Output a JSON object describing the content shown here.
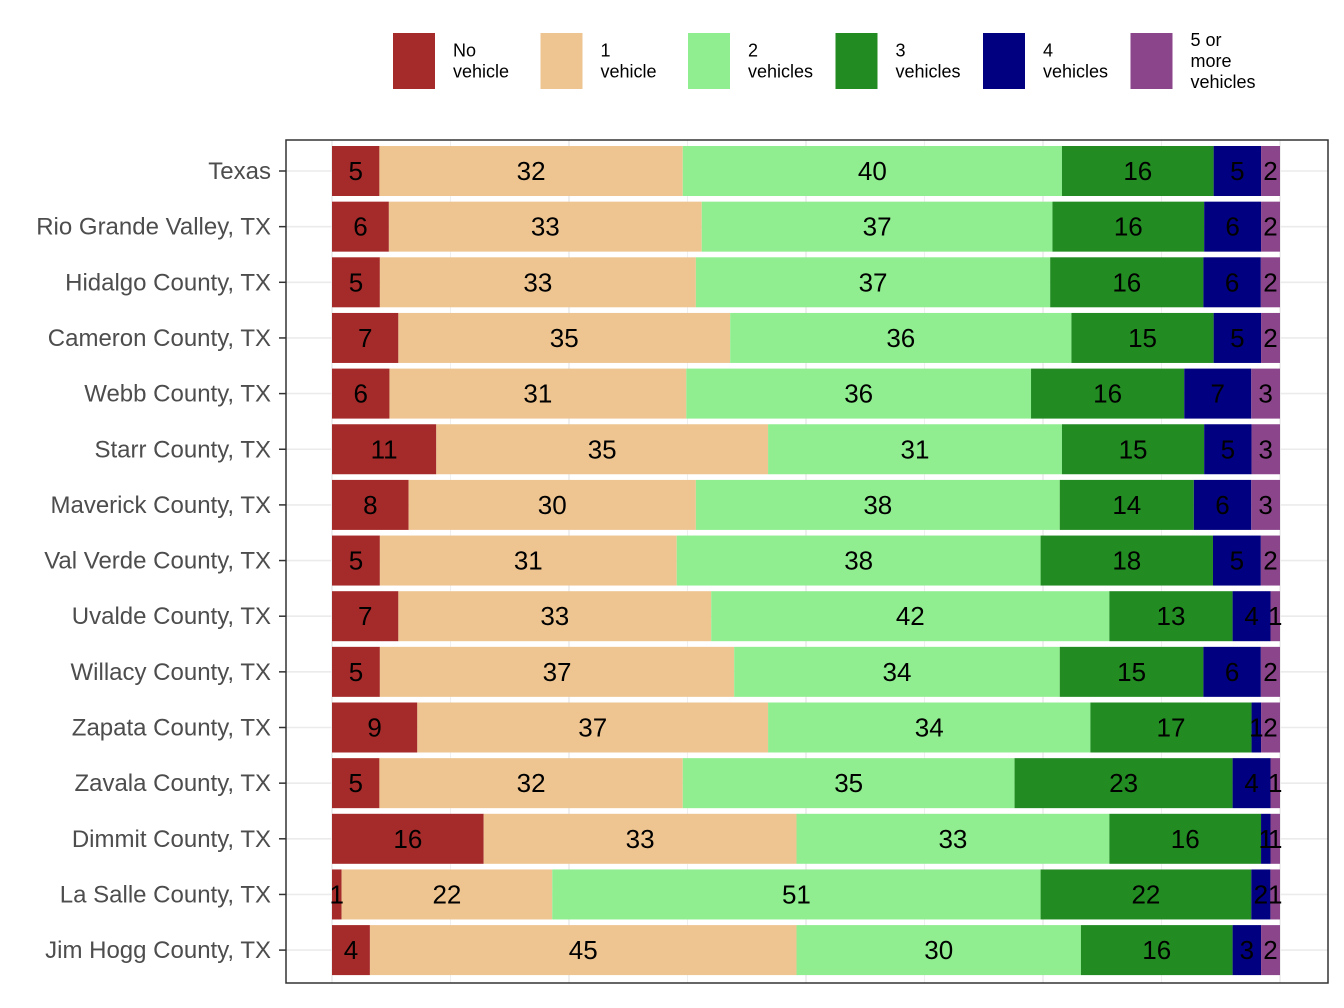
{
  "chart_data": {
    "type": "bar",
    "orientation": "horizontal",
    "stacked": true,
    "percent_stacked": true,
    "legend_position": "top",
    "grid": true,
    "title": "",
    "xlabel": "",
    "ylabel": "",
    "categories": [
      "Texas",
      "Rio Grande Valley, TX",
      "Hidalgo County, TX",
      "Cameron County, TX",
      "Webb County, TX",
      "Starr County, TX",
      "Maverick County, TX",
      "Val Verde County, TX",
      "Uvalde County, TX",
      "Willacy County, TX",
      "Zapata County, TX",
      "Zavala County, TX",
      "Dimmit County, TX",
      "La Salle County, TX",
      "Jim Hogg County, TX"
    ],
    "series": [
      {
        "name": "No vehicle",
        "legend_lines": [
          "No",
          "vehicle"
        ],
        "color": "#A52A2A",
        "values": [
          5,
          6,
          5,
          7,
          6,
          11,
          8,
          5,
          7,
          5,
          9,
          5,
          16,
          1,
          4
        ]
      },
      {
        "name": "1 vehicle",
        "legend_lines": [
          "1",
          "vehicle"
        ],
        "color": "#EEC591",
        "values": [
          32,
          33,
          33,
          35,
          31,
          35,
          30,
          31,
          33,
          37,
          37,
          32,
          33,
          22,
          45
        ]
      },
      {
        "name": "2 vehicles",
        "legend_lines": [
          "2",
          "vehicles"
        ],
        "color": "#90EE90",
        "values": [
          40,
          37,
          37,
          36,
          36,
          31,
          38,
          38,
          42,
          34,
          34,
          35,
          33,
          51,
          30
        ]
      },
      {
        "name": "3 vehicles",
        "legend_lines": [
          "3",
          "vehicles"
        ],
        "color": "#228B22",
        "values": [
          16,
          16,
          16,
          15,
          16,
          15,
          14,
          18,
          13,
          15,
          17,
          23,
          16,
          22,
          16
        ]
      },
      {
        "name": "4 vehicles",
        "legend_lines": [
          "4",
          "vehicles"
        ],
        "color": "#000080",
        "values": [
          5,
          6,
          6,
          5,
          7,
          5,
          6,
          5,
          4,
          6,
          1,
          4,
          1,
          2,
          3
        ]
      },
      {
        "name": "5 or more vehicles",
        "legend_lines": [
          "5 or",
          "more",
          "vehicles"
        ],
        "color": "#8B468B",
        "values": [
          2,
          2,
          2,
          2,
          3,
          3,
          3,
          2,
          1,
          2,
          2,
          1,
          1,
          1,
          2
        ]
      }
    ]
  }
}
